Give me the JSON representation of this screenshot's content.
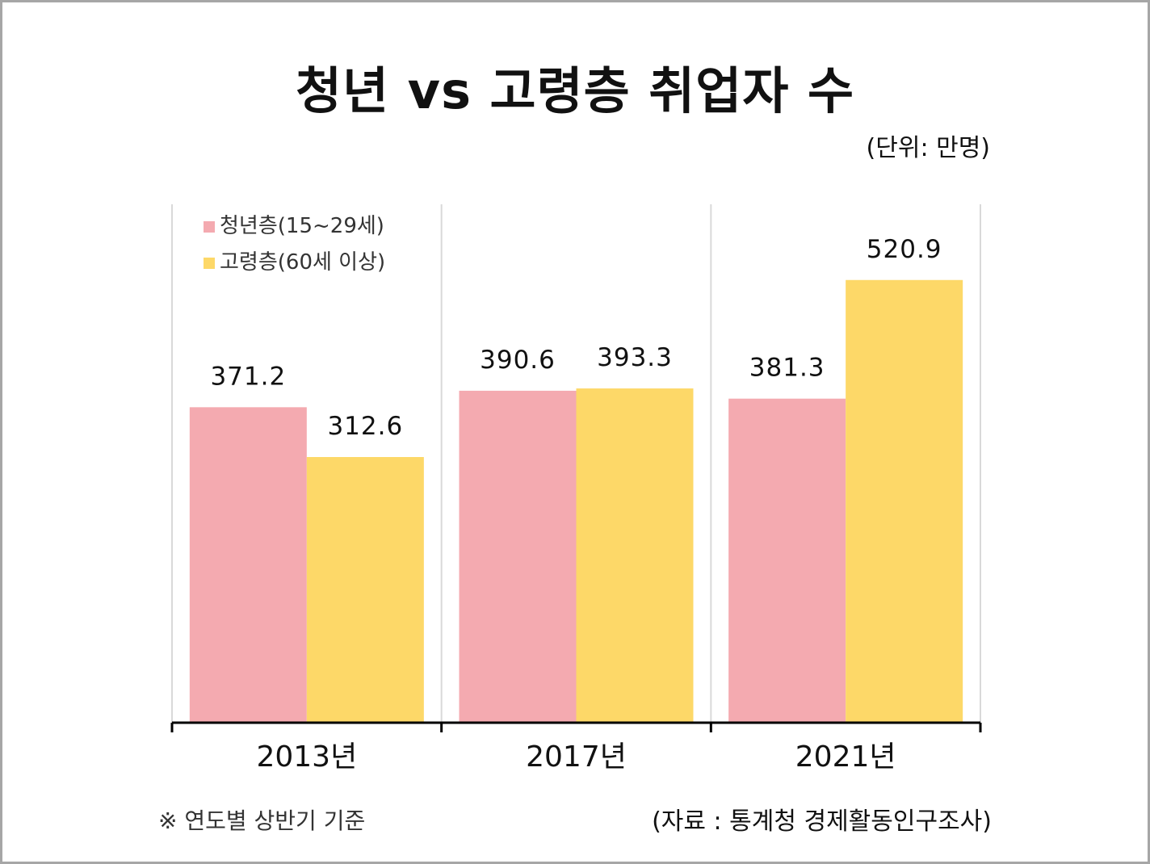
{
  "title": "청년 vs 고령층 취업자 수",
  "unit": "(단위: 만명)",
  "note_left": "※ 연도별 상반기 기준",
  "note_right": "(자료 : 통계청 경제활동인구조사)",
  "colors": {
    "series_0": "#f4aab0",
    "series_1": "#fdd868"
  },
  "chart_data": {
    "type": "bar",
    "categories": [
      "2013년",
      "2017년",
      "2021년"
    ],
    "series": [
      {
        "name": "청년층(15~29세)",
        "values": [
          371.2,
          390.6,
          381.3
        ]
      },
      {
        "name": "고령층(60세 이상)",
        "values": [
          312.6,
          393.3,
          520.9
        ]
      }
    ],
    "ylim": [
      0,
      610
    ],
    "grid": true,
    "legend_position": "top-left"
  }
}
